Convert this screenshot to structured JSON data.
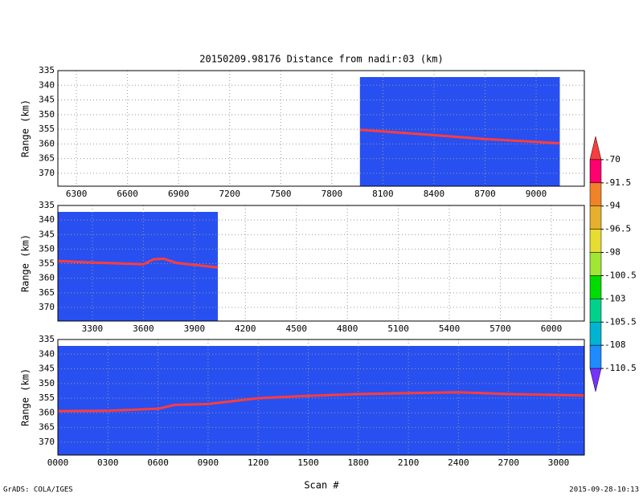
{
  "chart_data": [
    {
      "type": "line",
      "title": "20150209.98176    Distance from nadir:03 (km)",
      "y_label": "Range (km)",
      "xlim": [
        6191,
        9283
      ],
      "xticks": [
        6300,
        6600,
        6900,
        7200,
        7500,
        7800,
        8100,
        8400,
        8700,
        9000
      ],
      "ylim": [
        374.4,
        335
      ],
      "yticks": [
        335,
        340,
        345,
        350,
        355,
        360,
        365,
        370
      ],
      "grid": true,
      "background_color": "#2850f0",
      "color": "#ff3c3c",
      "x": [
        7965,
        8100,
        8400,
        8700,
        9000,
        9139
      ],
      "values": [
        355.2,
        355.7,
        357.0,
        358.3,
        359.3,
        359.8
      ]
    },
    {
      "type": "line",
      "y_label": "Range (km)",
      "xlim": [
        3097,
        6194
      ],
      "xticks": [
        3300,
        3600,
        3900,
        4200,
        4500,
        4800,
        5100,
        5400,
        5700,
        6000
      ],
      "ylim": [
        374.7,
        335
      ],
      "yticks": [
        335,
        340,
        345,
        350,
        355,
        360,
        365,
        370
      ],
      "grid": true,
      "background_color": "#2850f0",
      "color": "#ff3c3c",
      "x": [
        3097,
        3300,
        3600,
        3660,
        3720,
        3800,
        4038
      ],
      "values": [
        354.1,
        354.6,
        355.2,
        353.5,
        353.3,
        354.8,
        356.3
      ]
    },
    {
      "type": "line",
      "y_label": "Range (km)",
      "x_label": "Scan #",
      "xlim": [
        0,
        3154
      ],
      "xticks": [
        {
          "value": 0,
          "label": "0000"
        },
        {
          "value": 300,
          "label": "0300"
        },
        {
          "value": 600,
          "label": "0600"
        },
        {
          "value": 900,
          "label": "0900"
        },
        1200,
        1500,
        1800,
        2100,
        2400,
        2700,
        3000
      ],
      "ylim": [
        374.4,
        335
      ],
      "yticks": [
        335,
        340,
        345,
        350,
        355,
        360,
        365,
        370
      ],
      "grid": true,
      "background_color": "#2850f0",
      "color": "#ff3c3c",
      "x": [
        0,
        300,
        600,
        700,
        900,
        1200,
        1500,
        1800,
        2100,
        2400,
        2700,
        3154
      ],
      "values": [
        359.4,
        359.3,
        358.6,
        357.3,
        357.0,
        355.0,
        354.2,
        353.6,
        353.3,
        353.0,
        353.6,
        354.1
      ]
    }
  ],
  "colorbar": {
    "labels": [
      "-110.5",
      "-108",
      "-105.5",
      "-103",
      "-100.5",
      "-98",
      "-96.5",
      "-94",
      "-91.5",
      "-70"
    ],
    "colors": [
      "#7832ff",
      "#1e8cff",
      "#00b4d2",
      "#00d28c",
      "#00dc00",
      "#a0e632",
      "#e6dc32",
      "#e6af2d",
      "#f08228",
      "#ff006e",
      "#fa3c3c"
    ]
  },
  "footer": {
    "left": "GrADS: COLA/IGES",
    "right": "2015-09-28-10:13"
  }
}
